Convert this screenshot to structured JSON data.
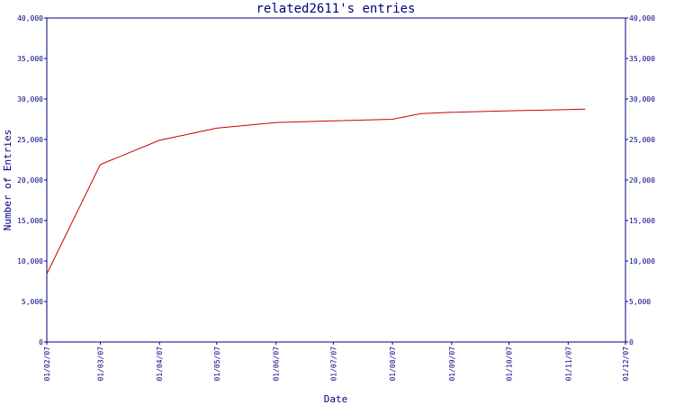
{
  "chart_data": {
    "type": "line",
    "title": "related2611's entries",
    "xlabel": "Date",
    "ylabel": "Number of Entries",
    "ylim": [
      0,
      40000
    ],
    "y_ticks": [
      "0",
      "5,000",
      "10,000",
      "15,000",
      "20,000",
      "25,000",
      "30,000",
      "35,000",
      "40,000"
    ],
    "x_ticks": [
      "01/02/07",
      "01/03/07",
      "01/04/07",
      "01/05/07",
      "01/06/07",
      "01/07/07",
      "01/08/07",
      "01/09/07",
      "01/10/07",
      "01/11/07",
      "01/12/07"
    ],
    "grid": false,
    "colors": {
      "line": "#cc0000",
      "axes": "#000080",
      "text": "#000080"
    },
    "series": [
      {
        "x": [
          "2007-02-01",
          "2007-03-01",
          "2007-04-01",
          "2007-05-01",
          "2007-06-01",
          "2007-07-01",
          "2007-08-01",
          "2007-08-16",
          "2007-09-01",
          "2007-10-01",
          "2007-11-01",
          "2007-11-10"
        ],
        "values": [
          8400,
          21900,
          24900,
          26400,
          27100,
          27300,
          27500,
          28200,
          28350,
          28550,
          28700,
          28750
        ]
      }
    ]
  }
}
